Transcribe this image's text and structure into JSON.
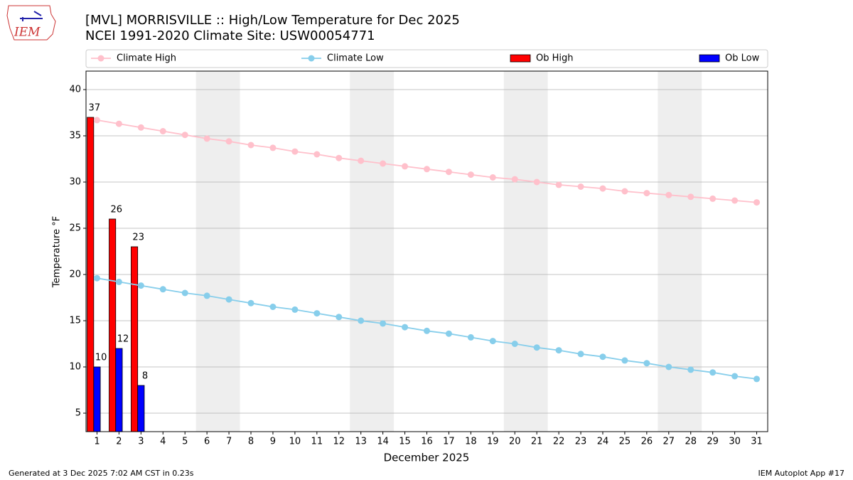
{
  "logo_text": "IEM",
  "footer_left": "Generated at 3 Dec 2025 7:02 AM CST in 0.23s",
  "footer_right": "IEM Autoplot App #17",
  "chart_data": {
    "type": "bar_line",
    "title": "[MVL] MORRISVILLE :: High/Low Temperature for Dec 2025",
    "subtitle": "NCEI 1991-2020 Climate Site: USW00054771",
    "x_label": "December 2025",
    "y_label": "Temperature °F",
    "x": [
      1,
      2,
      3,
      4,
      5,
      6,
      7,
      8,
      9,
      10,
      11,
      12,
      13,
      14,
      15,
      16,
      17,
      18,
      19,
      20,
      21,
      22,
      23,
      24,
      25,
      26,
      27,
      28,
      29,
      30,
      31
    ],
    "xlim": [
      0.5,
      31.5
    ],
    "xticks": [
      1,
      2,
      3,
      4,
      5,
      6,
      7,
      8,
      9,
      10,
      11,
      12,
      13,
      14,
      15,
      16,
      17,
      18,
      19,
      20,
      21,
      22,
      23,
      24,
      25,
      26,
      27,
      28,
      29,
      30,
      31
    ],
    "ylim": [
      3,
      42
    ],
    "yticks": [
      5,
      10,
      15,
      20,
      25,
      30,
      35,
      40
    ],
    "grid": true,
    "shaded_ranges": [
      [
        5.5,
        7.5
      ],
      [
        12.5,
        14.5
      ],
      [
        19.5,
        21.5
      ],
      [
        26.5,
        28.5
      ]
    ],
    "series": [
      {
        "name": "Climate High",
        "kind": "line",
        "color": "#ffc0cb",
        "values": [
          36.7,
          36.3,
          35.9,
          35.5,
          35.1,
          34.7,
          34.4,
          34.0,
          33.7,
          33.3,
          33.0,
          32.6,
          32.3,
          32.0,
          31.7,
          31.4,
          31.1,
          30.8,
          30.5,
          30.3,
          30.0,
          29.7,
          29.5,
          29.3,
          29.0,
          28.8,
          28.6,
          28.4,
          28.2,
          28.0,
          27.8
        ]
      },
      {
        "name": "Climate Low",
        "kind": "line",
        "color": "#87ceeb",
        "values": [
          19.6,
          19.2,
          18.8,
          18.4,
          18.0,
          17.7,
          17.3,
          16.9,
          16.5,
          16.2,
          15.8,
          15.4,
          15.0,
          14.7,
          14.3,
          13.9,
          13.6,
          13.2,
          12.8,
          12.5,
          12.1,
          11.8,
          11.4,
          11.1,
          10.7,
          10.4,
          10.0,
          9.7,
          9.4,
          9.0,
          8.7
        ]
      },
      {
        "name": "Ob High",
        "kind": "bar",
        "color": "#ff0000",
        "values": [
          37,
          26,
          23,
          null,
          null,
          null,
          null,
          null,
          null,
          null,
          null,
          null,
          null,
          null,
          null,
          null,
          null,
          null,
          null,
          null,
          null,
          null,
          null,
          null,
          null,
          null,
          null,
          null,
          null,
          null,
          null
        ]
      },
      {
        "name": "Ob Low",
        "kind": "bar",
        "color": "#0000ff",
        "values": [
          10,
          12,
          8,
          null,
          null,
          null,
          null,
          null,
          null,
          null,
          null,
          null,
          null,
          null,
          null,
          null,
          null,
          null,
          null,
          null,
          null,
          null,
          null,
          null,
          null,
          null,
          null,
          null,
          null,
          null,
          null
        ]
      }
    ]
  }
}
